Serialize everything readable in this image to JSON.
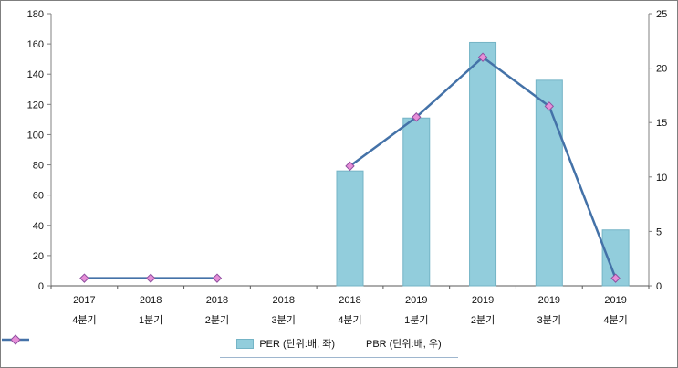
{
  "frame": {
    "background": "#ffffff",
    "border_color": "#7f7f7f"
  },
  "chart_data": {
    "type": "combo",
    "title": "",
    "xlabel": "",
    "ylabel_left": "",
    "ylabel_right": "",
    "grid": false,
    "legend_position": "bottom",
    "categories_line1": [
      "2017",
      "2018",
      "2018",
      "2018",
      "2018",
      "2019",
      "2019",
      "2019",
      "2019"
    ],
    "categories_line2": [
      "4분기",
      "1분기",
      "2분기",
      "3분기",
      "4분기",
      "1분기",
      "2분기",
      "3분기",
      "4분기"
    ],
    "series": [
      {
        "name": "PER (단위:배, 좌)",
        "type": "bar",
        "axis": "left",
        "color": "#92cddc",
        "border": "#74b4c6",
        "values": [
          null,
          null,
          null,
          null,
          76,
          111,
          161,
          136,
          37
        ]
      },
      {
        "name": "PBR (단위:배, 우)",
        "type": "line",
        "axis": "right",
        "color": "#4472a8",
        "marker": "diamond",
        "marker_fill": "#e78fd8",
        "marker_stroke": "#9050a0",
        "values": [
          0.7,
          0.7,
          0.7,
          null,
          11,
          15.5,
          21,
          16.5,
          0.7
        ]
      }
    ],
    "left_axis": {
      "min": 0,
      "max": 180,
      "step": 20,
      "tick_labels": [
        "0",
        "20",
        "40",
        "60",
        "80",
        "100",
        "120",
        "140",
        "160",
        "180"
      ]
    },
    "right_axis": {
      "min": 0,
      "max": 25,
      "step": 5,
      "tick_labels": [
        "0",
        "5",
        "10",
        "15",
        "20",
        "25"
      ]
    }
  }
}
